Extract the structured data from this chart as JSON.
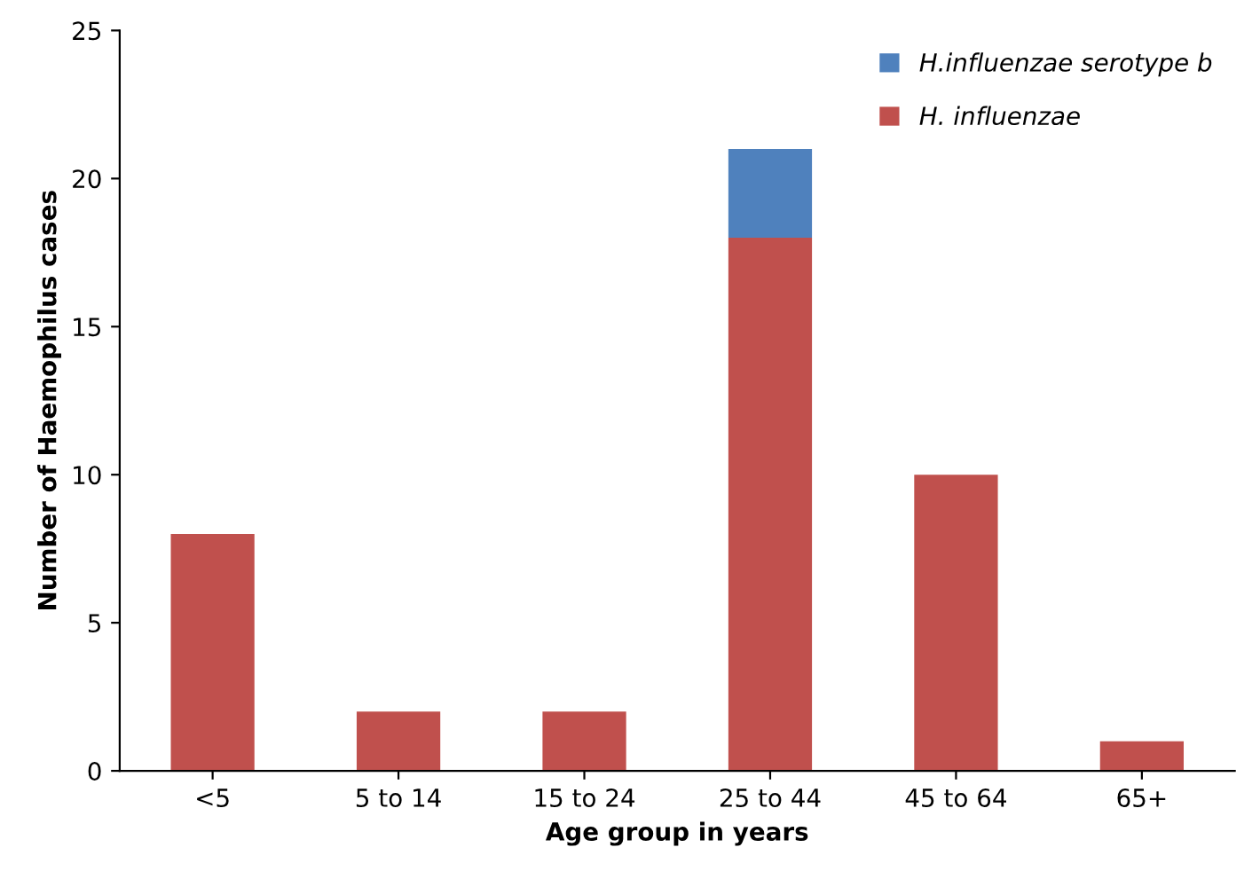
{
  "chart_data": {
    "type": "bar",
    "stacked": true,
    "categories": [
      "<5",
      "5 to 14",
      "15 to 24",
      "25 to 44",
      "45 to 64",
      "65+"
    ],
    "series": [
      {
        "name": "H. influenzae",
        "color": "#c0504d",
        "values": [
          8,
          2,
          2,
          18,
          10,
          1
        ]
      },
      {
        "name": "H.influenzae serotype b",
        "color": "#4f81bd",
        "values": [
          0,
          0,
          0,
          3,
          0,
          0
        ]
      }
    ],
    "xlabel": "Age group in years",
    "ylabel": "Number of Haemophilus cases",
    "ylim": [
      0,
      25
    ],
    "yticks": [
      0,
      5,
      10,
      15,
      20,
      25
    ],
    "grid": false,
    "legend": "top right"
  }
}
